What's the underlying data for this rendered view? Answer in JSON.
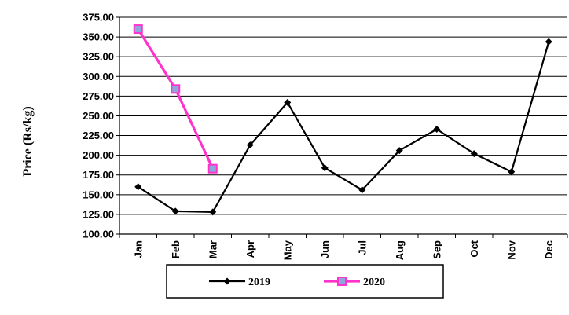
{
  "chart_data": {
    "type": "line",
    "title": "",
    "xlabel": "",
    "ylabel": "Price (Rs/kg)",
    "categories": [
      "Jan",
      "Feb",
      "Mar",
      "Apr",
      "May",
      "Jun",
      "Jul",
      "Aug",
      "Sep",
      "Oct",
      "Nov",
      "Dec"
    ],
    "ylim": [
      100,
      375
    ],
    "y_ticks": [
      "375.00",
      "350.00",
      "325.00",
      "300.00",
      "275.00",
      "250.00",
      "225.00",
      "200.00",
      "175.00",
      "150.00",
      "125.00",
      "100.00"
    ],
    "grid": "horizontal",
    "legend_position": "bottom",
    "series": [
      {
        "name": "2019",
        "color": "#000000",
        "marker": "diamond",
        "values": [
          160,
          129,
          128,
          213,
          267,
          184,
          156,
          206,
          233,
          202,
          179,
          344
        ]
      },
      {
        "name": "2020",
        "color": "#ff33cc",
        "marker": "square",
        "marker_fill": "#8fa6dd",
        "values": [
          360,
          284,
          183,
          null,
          null,
          null,
          null,
          null,
          null,
          null,
          null,
          null
        ]
      }
    ]
  }
}
